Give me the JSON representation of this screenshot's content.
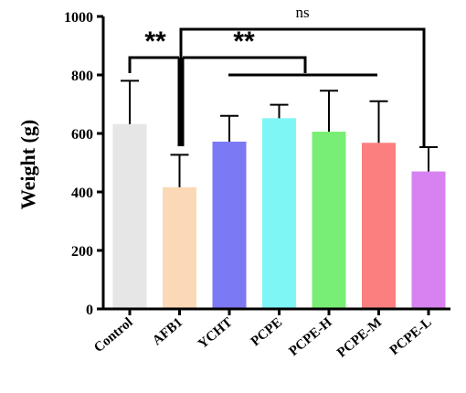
{
  "chart_data": {
    "type": "bar",
    "categories": [
      "Control",
      "AFB1",
      "YCHT",
      "PCPE",
      "PCPE-H",
      "PCPE-M",
      "PCPE-L"
    ],
    "values": [
      632,
      416,
      572,
      652,
      606,
      568,
      470
    ],
    "error_upper": [
      780,
      527,
      660,
      698,
      746,
      710,
      553
    ],
    "colors": [
      "#e6e6e6",
      "#fcd9b6",
      "#7b79f4",
      "#7ef6f6",
      "#78ef74",
      "#fc7f7f",
      "#d782f0"
    ],
    "ylabel": "Weight  (g)",
    "ylim": [
      0,
      1000
    ],
    "yticks": [
      0,
      200,
      400,
      600,
      800,
      1000
    ],
    "grid": false,
    "annotations": [
      {
        "label": "**",
        "from": "Control",
        "to": "AFB1"
      },
      {
        "label": "**",
        "from": "AFB1",
        "to": "YCHT–PCPE-L group"
      },
      {
        "label": "ns",
        "from": "AFB1",
        "to": "PCPE-L"
      }
    ]
  }
}
